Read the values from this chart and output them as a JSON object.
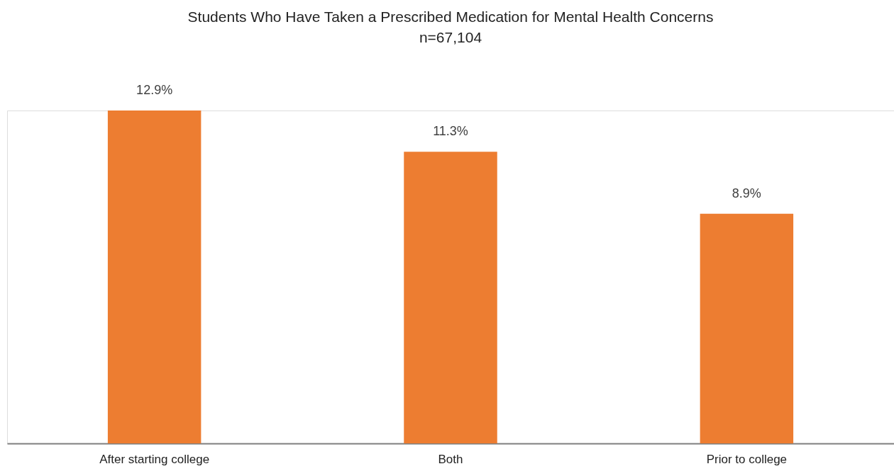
{
  "chart_data": {
    "type": "bar",
    "title": "Students Who Have Taken a Prescribed Medication for Mental Health Concerns",
    "subtitle": "n=67,104",
    "categories": [
      "After starting college",
      "Both",
      "Prior to college"
    ],
    "values": [
      12.9,
      11.3,
      8.9
    ],
    "value_labels": [
      "12.9%",
      "11.3%",
      "8.9%"
    ],
    "color": "#ed7d31"
  }
}
